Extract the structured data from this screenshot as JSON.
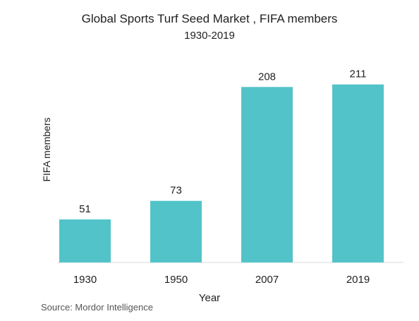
{
  "chart_data": {
    "type": "bar",
    "title": "Global Sports Turf Seed Market , FIFA members",
    "subtitle": "1930-2019",
    "xlabel": "Year",
    "ylabel": "FIFA members",
    "categories": [
      "1930",
      "1950",
      "2007",
      "2019"
    ],
    "values": [
      51,
      73,
      208,
      211
    ],
    "data_labels": [
      "51",
      "73",
      "208",
      "211"
    ],
    "ylim": [
      0,
      240
    ],
    "grid": false,
    "legend": "none",
    "bar_color": "#52c4c9"
  },
  "source": "Source: Mordor Intelligence"
}
